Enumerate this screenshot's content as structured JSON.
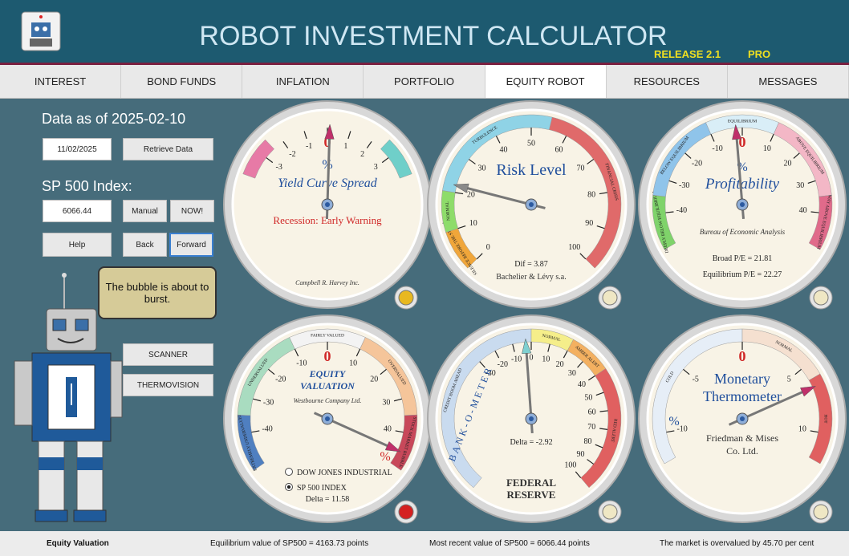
{
  "header": {
    "title": "ROBOT INVESTMENT CALCULATOR",
    "release": "RELEASE 2.1",
    "edition": "PRO"
  },
  "tabs": [
    "INTEREST",
    "BOND FUNDS",
    "INFLATION",
    "PORTFOLIO",
    "EQUITY ROBOT",
    "RESOURCES",
    "MESSAGES"
  ],
  "active_tab": 4,
  "sidebar": {
    "data_as_of": "Data as of 2025-02-10",
    "date_input": "11/02/2025",
    "retrieve_button": "Retrieve Data",
    "index_label": "SP 500 Index:",
    "index_input": "6066.44",
    "manual_button": "Manual",
    "now_button": "NOW!",
    "help_button": "Help",
    "back_button": "Back",
    "forward_button": "Forward",
    "bubble_text": "The bubble is about to burst.",
    "scanner_button": "SCANNER",
    "thermovision_button": "THERMOVISION"
  },
  "gauges": [
    {
      "title": [
        "Yield Curve Spread"
      ],
      "unit": "%",
      "range": [
        -4,
        4
      ],
      "ticks": [
        -3,
        -2,
        -1,
        0,
        1,
        2,
        3
      ],
      "needle": 0.1,
      "needle_color": "#c0306a",
      "bands": [
        {
          "from": -4,
          "to": -2.5,
          "color": "#e77aa6"
        },
        {
          "from": 2.5,
          "to": 4,
          "color": "#6fcfc9"
        }
      ],
      "readouts": [
        "Recession: Early Warning"
      ],
      "maker": [
        "Campbell R. Harvey Inc."
      ],
      "lamp": "#e8b820"
    },
    {
      "title": [
        "Risk Level"
      ],
      "range": [
        0,
        100
      ],
      "ticks": [
        0,
        10,
        20,
        30,
        40,
        50,
        60,
        70,
        80,
        90,
        100
      ],
      "needle": 22,
      "needle_color": "#8a8a8a",
      "bands": [
        {
          "from": 0,
          "to": 10,
          "color": "#f0a63a",
          "label": "SILENCE BEFORE THE STORM"
        },
        {
          "from": 10,
          "to": 20,
          "color": "#8edc6a",
          "label": "NORMAL"
        },
        {
          "from": 20,
          "to": 55,
          "color": "#8fd3e6",
          "label": "TURBULENCE"
        },
        {
          "from": 55,
          "to": 100,
          "color": "#e06a6a",
          "label": "FINANCIAL CRISIS"
        }
      ],
      "readouts": [
        "Dif = 3.87"
      ],
      "maker": [
        "Bachelier & Lévy s.a."
      ],
      "lamp": "#efe7c4"
    },
    {
      "title": [
        "Profitability"
      ],
      "unit": "%",
      "range": [
        -50,
        50
      ],
      "ticks": [
        -40,
        -30,
        -20,
        -10,
        0,
        10,
        20,
        30,
        40
      ],
      "needle": -2,
      "needle_color": "#c0306a",
      "bands": [
        {
          "from": -50,
          "to": -35,
          "color": "#7fd36a",
          "label": "DEEPLY BELOW EQUILIBRIUM"
        },
        {
          "from": -35,
          "to": -10,
          "color": "#8fc4ea",
          "label": "BELOW EQUILIBRIUM"
        },
        {
          "from": -10,
          "to": 10,
          "color": "#d9eef7",
          "label": "EQUILIBRIUM"
        },
        {
          "from": 10,
          "to": 35,
          "color": "#f3b7c6",
          "label": "ABOVE EQUILIBRIUM"
        },
        {
          "from": 35,
          "to": 50,
          "color": "#e06a8a",
          "label": "WAY ABOVE EQUILIBRIUM"
        }
      ],
      "readouts": [
        "Broad P/E = 21.81",
        "Equilibrium P/E = 22.27"
      ],
      "maker": [
        "Bureau of Economic Analysis"
      ],
      "lamp": "#efe7c4"
    },
    {
      "title": [
        "EQUITY",
        "VALUATION"
      ],
      "unit": "%",
      "range": [
        -50,
        50
      ],
      "ticks": [
        -40,
        -30,
        -20,
        -10,
        0,
        10,
        20,
        30,
        40
      ],
      "needle": 45.7,
      "needle_color": "#c0306a",
      "bands": [
        {
          "from": -50,
          "to": -35,
          "color": "#4f7fc0",
          "label": "EXTREMELY UNDERVALUED"
        },
        {
          "from": -35,
          "to": -10,
          "color": "#a9dcc0",
          "label": "UNDERVALUED"
        },
        {
          "from": -10,
          "to": 10,
          "color": "#f3f3f3",
          "label": "FAIRLY VALUED"
        },
        {
          "from": 10,
          "to": 35,
          "color": "#f5c59a",
          "label": "OVERVALUED"
        },
        {
          "from": 35,
          "to": 50,
          "color": "#c8485a",
          "label": "STOCK MARKET BUBBLE"
        }
      ],
      "readouts": [
        "Delta = 11.58"
      ],
      "maker": [
        "Westbourne Company Ltd."
      ],
      "options": [
        "DOW JONES INDUSTRIAL",
        "SP 500 INDEX"
      ],
      "selected_option": 1,
      "lamp": "#d42020"
    },
    {
      "title": [
        "BANK-O-METER"
      ],
      "range": [
        -100,
        100
      ],
      "ticks": [
        -30,
        -20,
        -10,
        0,
        10,
        20,
        30,
        40,
        50,
        60,
        70,
        80,
        90,
        100
      ],
      "needle": -2.92,
      "needle_color": "#7fd0d0",
      "bands": [
        {
          "from": -100,
          "to": 0,
          "color": "#c9dbef",
          "label": "CREDIT BOOM AHEAD"
        },
        {
          "from": 0,
          "to": 20,
          "color": "#f5ee8a",
          "label": "NORMAL"
        },
        {
          "from": 20,
          "to": 40,
          "color": "#f3b060",
          "label": "AMBER ALERT"
        },
        {
          "from": 40,
          "to": 100,
          "color": "#e06060",
          "label": "RED ALERT"
        }
      ],
      "readouts": [
        "Delta = -2.92"
      ],
      "maker": [
        "FEDERAL",
        "RESERVE"
      ],
      "lamp": "#efe7c4"
    },
    {
      "title": [
        "Monetary",
        "Thermometer"
      ],
      "unit": "%",
      "range": [
        -12,
        12
      ],
      "ticks": [
        -10,
        -5,
        0,
        5,
        10
      ],
      "needle": 6.6,
      "needle_color": "#c0306a",
      "bands": [
        {
          "from": -12,
          "to": 0,
          "color": "#e6eef7",
          "label": "COLD"
        },
        {
          "from": 0,
          "to": 6,
          "color": "#f5e0d0",
          "label": "NORMAL"
        },
        {
          "from": 6,
          "to": 12,
          "color": "#e06060",
          "label": "HOT"
        }
      ],
      "readouts": [],
      "maker": [
        "Friedman & Mises",
        "Co. Ltd."
      ],
      "lamp": "#efe7c4"
    }
  ],
  "status": {
    "section": "Equity Valuation",
    "equilibrium": "Equilibrium value of SP500 = 4163.73 points",
    "recent": "Most recent value of SP500 = 6066.44 points",
    "verdict": "The market is overvalued by 45.70 per cent"
  }
}
